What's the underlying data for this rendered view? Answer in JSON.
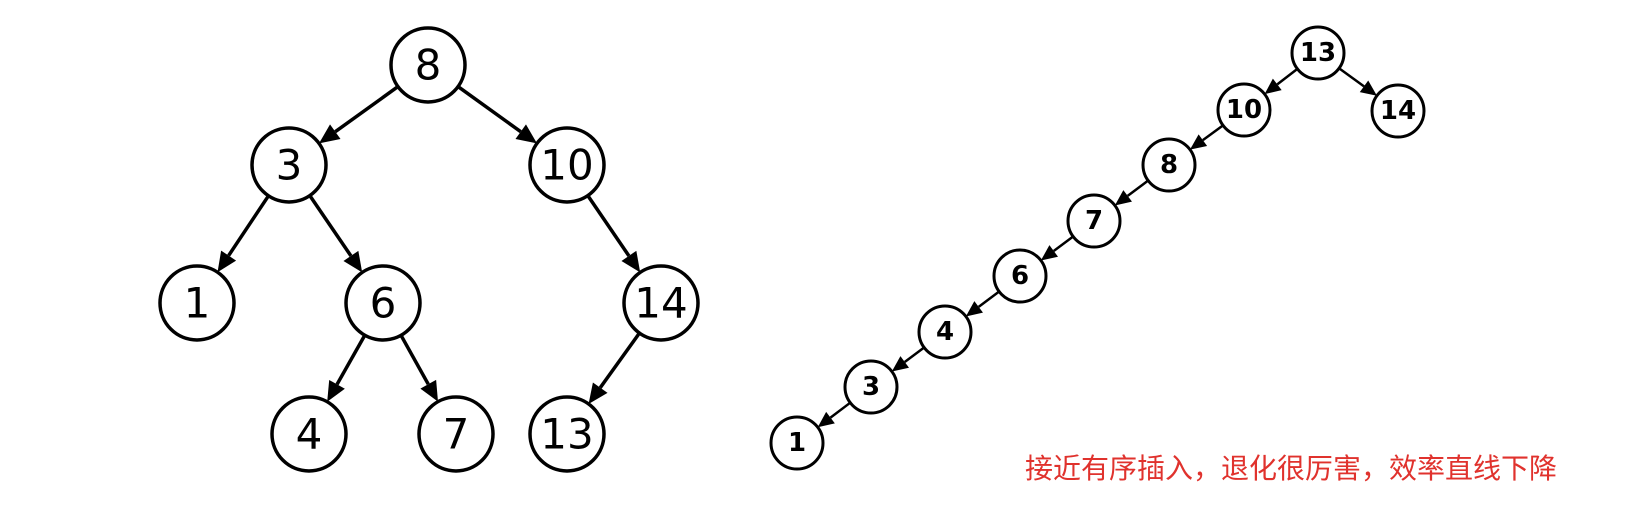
{
  "balanced_tree": {
    "nodes": [
      {
        "id": "n8",
        "label": "8"
      },
      {
        "id": "n3",
        "label": "3"
      },
      {
        "id": "n10",
        "label": "10"
      },
      {
        "id": "n1",
        "label": "1"
      },
      {
        "id": "n6",
        "label": "6"
      },
      {
        "id": "n14",
        "label": "14"
      },
      {
        "id": "n4",
        "label": "4"
      },
      {
        "id": "n7",
        "label": "7"
      },
      {
        "id": "n13",
        "label": "13"
      }
    ],
    "edges": [
      [
        "n8",
        "n3"
      ],
      [
        "n8",
        "n10"
      ],
      [
        "n3",
        "n1"
      ],
      [
        "n3",
        "n6"
      ],
      [
        "n10",
        "n14"
      ],
      [
        "n6",
        "n4"
      ],
      [
        "n6",
        "n7"
      ],
      [
        "n14",
        "n13"
      ]
    ]
  },
  "degenerate_tree": {
    "nodes": [
      {
        "id": "d13",
        "label": "13"
      },
      {
        "id": "d10",
        "label": "10"
      },
      {
        "id": "d14",
        "label": "14"
      },
      {
        "id": "d8",
        "label": "8"
      },
      {
        "id": "d7",
        "label": "7"
      },
      {
        "id": "d6",
        "label": "6"
      },
      {
        "id": "d4",
        "label": "4"
      },
      {
        "id": "d3",
        "label": "3"
      },
      {
        "id": "d1",
        "label": "1"
      }
    ],
    "edges": [
      [
        "d13",
        "d10"
      ],
      [
        "d13",
        "d14"
      ],
      [
        "d10",
        "d8"
      ],
      [
        "d8",
        "d7"
      ],
      [
        "d7",
        "d6"
      ],
      [
        "d6",
        "d4"
      ],
      [
        "d4",
        "d3"
      ],
      [
        "d3",
        "d1"
      ]
    ]
  },
  "caption": "接近有序插入，退化很厉害，效率直线下降",
  "colors": {
    "caption": "#e0322d",
    "stroke": "#000000"
  }
}
